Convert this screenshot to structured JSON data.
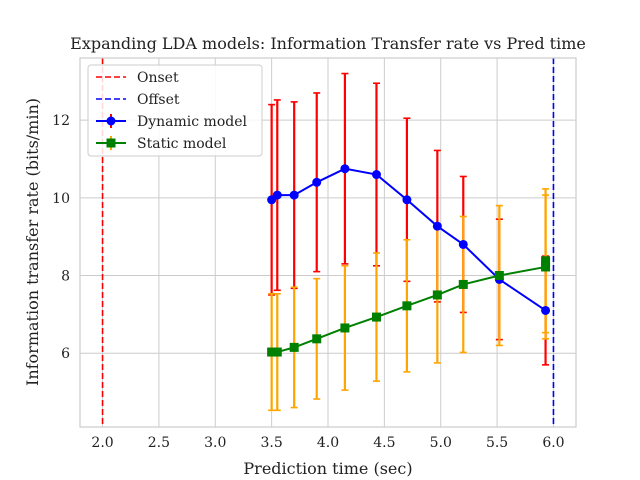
{
  "chart_data": {
    "type": "line",
    "title": "Expanding LDA models: Information Transfer rate vs Pred time",
    "xlabel": "Prediction time (sec)",
    "ylabel": "Information transfer rate (bits/min)",
    "xlim": [
      1.8,
      6.2
    ],
    "ylim": [
      4.1,
      13.6
    ],
    "xticks": [
      2.0,
      2.5,
      3.0,
      3.5,
      4.0,
      4.5,
      5.0,
      5.5,
      6.0
    ],
    "xtick_labels": [
      "2.0",
      "2.5",
      "3.0",
      "3.5",
      "4.0",
      "4.5",
      "5.0",
      "5.5",
      "6.0"
    ],
    "yticks": [
      6,
      8,
      10,
      12
    ],
    "ytick_labels": [
      "6",
      "8",
      "10",
      "12"
    ],
    "grid": true,
    "legend": "top-left",
    "vlines": [
      {
        "name": "Onset",
        "x": 2.0,
        "color": "#ff0000",
        "style": "dashed"
      },
      {
        "name": "Offset",
        "x": 6.0,
        "color": "#0000ff",
        "style": "dashed"
      }
    ],
    "series": [
      {
        "name": "Dynamic model",
        "color": "#0000ff",
        "errcolor": "#ff0000",
        "marker": "circle",
        "x": [
          3.5,
          3.55,
          3.7,
          3.9,
          4.15,
          4.43,
          4.7,
          4.97,
          5.2,
          5.52,
          5.93
        ],
        "y": [
          9.95,
          10.07,
          10.07,
          10.4,
          10.75,
          10.6,
          9.95,
          9.27,
          8.8,
          7.9,
          7.1
        ],
        "err": [
          2.45,
          2.45,
          2.4,
          2.3,
          2.45,
          2.35,
          2.1,
          1.95,
          1.75,
          1.55,
          1.4
        ]
      },
      {
        "name": "Static model",
        "color": "#008000",
        "errcolor": "#ffa500",
        "marker": "square",
        "x": [
          3.5,
          3.55,
          3.7,
          3.9,
          4.15,
          4.43,
          4.7,
          4.97,
          5.2,
          5.52,
          5.93,
          5.93
        ],
        "y": [
          6.03,
          6.03,
          6.15,
          6.37,
          6.65,
          6.93,
          7.22,
          7.5,
          7.77,
          8.0,
          8.22,
          8.38
        ],
        "err": [
          1.5,
          1.5,
          1.55,
          1.55,
          1.6,
          1.65,
          1.7,
          1.75,
          1.75,
          1.8,
          1.85,
          1.85
        ]
      }
    ]
  }
}
